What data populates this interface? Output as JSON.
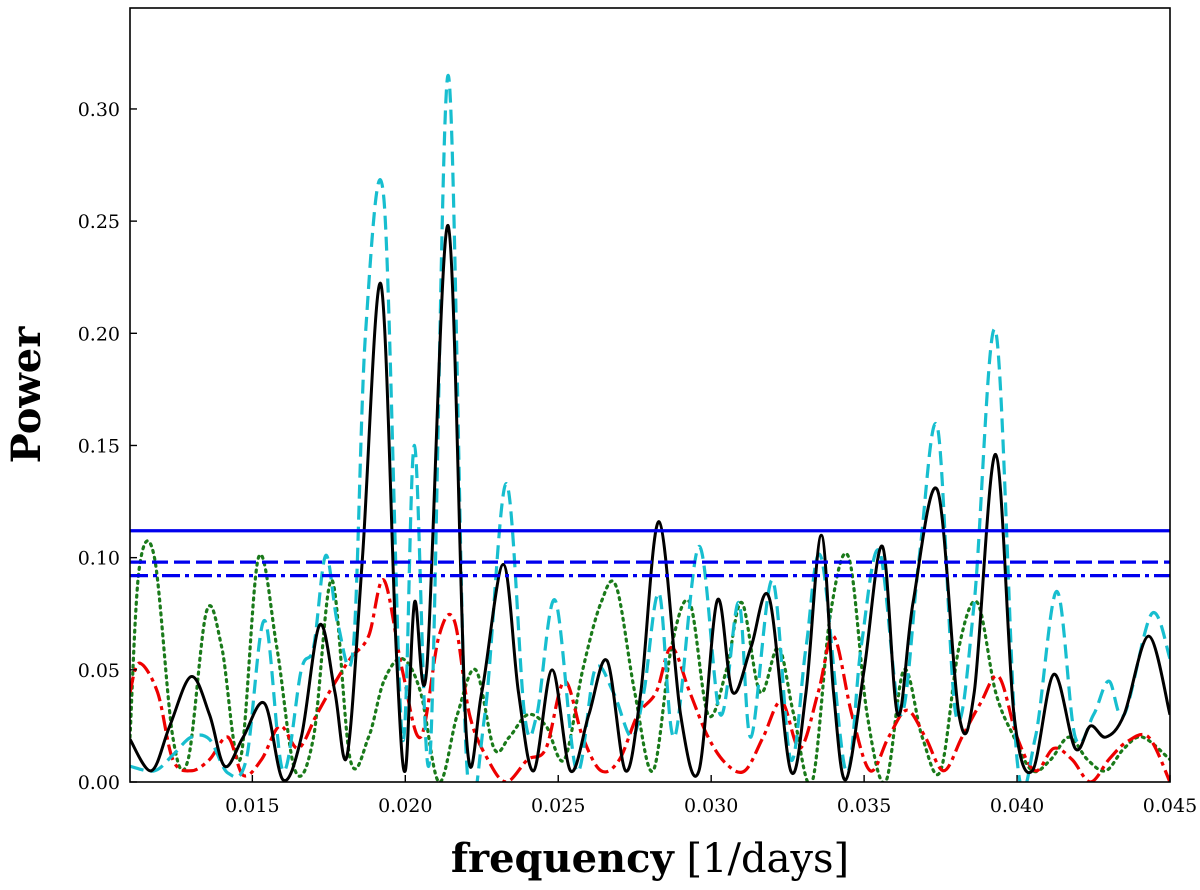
{
  "chart_data": {
    "type": "line",
    "title": "",
    "xlabel": {
      "bold": "frequency",
      "rest": " [1/days]"
    },
    "ylabel": "Power",
    "xlim": [
      0.011,
      0.045
    ],
    "ylim": [
      0.0,
      0.345
    ],
    "xticks": [
      {
        "value": 0.015,
        "label": "0.015"
      },
      {
        "value": 0.02,
        "label": "0.020"
      },
      {
        "value": 0.025,
        "label": "0.025"
      },
      {
        "value": 0.03,
        "label": "0.030"
      },
      {
        "value": 0.035,
        "label": "0.035"
      },
      {
        "value": 0.04,
        "label": "0.040"
      },
      {
        "value": 0.045,
        "label": "0.045"
      }
    ],
    "yticks": [
      {
        "value": 0.0,
        "label": "0.00"
      },
      {
        "value": 0.05,
        "label": "0.05"
      },
      {
        "value": 0.1,
        "label": "0.10"
      },
      {
        "value": 0.15,
        "label": "0.15"
      },
      {
        "value": 0.2,
        "label": "0.20"
      },
      {
        "value": 0.25,
        "label": "0.25"
      },
      {
        "value": 0.3,
        "label": "0.30"
      }
    ],
    "grid": false,
    "legend": "none",
    "hlines": [
      {
        "name": "threshold-solid",
        "y": 0.112,
        "color": "#0000ee",
        "style": "solid"
      },
      {
        "name": "threshold-dashed",
        "y": 0.098,
        "color": "#0000ee",
        "style": "dashed"
      },
      {
        "name": "threshold-dashdot",
        "y": 0.092,
        "color": "#0000ee",
        "style": "dashdot"
      }
    ],
    "series": [
      {
        "name": "cyan-dashed",
        "color": "#17becf",
        "style": "dashed",
        "x": [
          0.011,
          0.0118,
          0.0124,
          0.013,
          0.0136,
          0.0142,
          0.0148,
          0.0154,
          0.016,
          0.0166,
          0.017,
          0.0174,
          0.0178,
          0.0183,
          0.0187,
          0.0193,
          0.0199,
          0.0203,
          0.0208,
          0.0214,
          0.022,
          0.0226,
          0.0233,
          0.0239,
          0.0243,
          0.0249,
          0.0256,
          0.0262,
          0.0268,
          0.0274,
          0.0278,
          0.0283,
          0.0288,
          0.0296,
          0.0303,
          0.0309,
          0.0313,
          0.032,
          0.0326,
          0.0331,
          0.0336,
          0.0344,
          0.0349,
          0.0355,
          0.0362,
          0.0368,
          0.0374,
          0.038,
          0.0386,
          0.0393,
          0.04,
          0.0406,
          0.0413,
          0.0419,
          0.0425,
          0.043,
          0.0435,
          0.0444,
          0.045
        ],
        "y": [
          0.007,
          0.005,
          0.012,
          0.02,
          0.019,
          0.004,
          0.01,
          0.072,
          0.005,
          0.05,
          0.06,
          0.101,
          0.07,
          0.06,
          0.2,
          0.26,
          0.02,
          0.15,
          0.01,
          0.315,
          0.01,
          0.03,
          0.133,
          0.03,
          0.03,
          0.081,
          0.005,
          0.05,
          0.04,
          0.02,
          0.04,
          0.084,
          0.02,
          0.105,
          0.03,
          0.08,
          0.02,
          0.09,
          0.01,
          0.06,
          0.1,
          0.005,
          0.06,
          0.103,
          0.03,
          0.1,
          0.158,
          0.03,
          0.08,
          0.201,
          0.01,
          0.02,
          0.085,
          0.02,
          0.03,
          0.045,
          0.03,
          0.075,
          0.055
        ]
      },
      {
        "name": "black-solid",
        "color": "#000000",
        "style": "solid",
        "x": [
          0.011,
          0.0117,
          0.0123,
          0.013,
          0.0136,
          0.0141,
          0.0147,
          0.0154,
          0.016,
          0.0166,
          0.0172,
          0.0177,
          0.0181,
          0.0186,
          0.0192,
          0.0197,
          0.02,
          0.0203,
          0.0207,
          0.0214,
          0.022,
          0.0225,
          0.0232,
          0.0237,
          0.0242,
          0.0248,
          0.0254,
          0.026,
          0.0266,
          0.0272,
          0.0277,
          0.0283,
          0.029,
          0.0296,
          0.0302,
          0.0307,
          0.0313,
          0.0319,
          0.0326,
          0.0331,
          0.0336,
          0.034,
          0.0344,
          0.035,
          0.0356,
          0.0361,
          0.0366,
          0.0374,
          0.0381,
          0.0386,
          0.0393,
          0.0399,
          0.0405,
          0.0412,
          0.0419,
          0.0424,
          0.0429,
          0.0435,
          0.0443,
          0.045
        ],
        "y": [
          0.019,
          0.005,
          0.025,
          0.047,
          0.03,
          0.007,
          0.02,
          0.035,
          0.001,
          0.02,
          0.07,
          0.04,
          0.012,
          0.1,
          0.222,
          0.06,
          0.005,
          0.08,
          0.05,
          0.248,
          0.02,
          0.04,
          0.097,
          0.04,
          0.005,
          0.05,
          0.005,
          0.03,
          0.054,
          0.005,
          0.04,
          0.116,
          0.03,
          0.005,
          0.081,
          0.04,
          0.06,
          0.082,
          0.005,
          0.04,
          0.11,
          0.04,
          0.001,
          0.05,
          0.105,
          0.03,
          0.08,
          0.13,
          0.03,
          0.04,
          0.146,
          0.03,
          0.005,
          0.048,
          0.015,
          0.025,
          0.02,
          0.03,
          0.065,
          0.03
        ]
      },
      {
        "name": "red-dashdot",
        "color": "#ee0000",
        "style": "dashdot",
        "x": [
          0.011,
          0.0113,
          0.0119,
          0.0124,
          0.013,
          0.0136,
          0.0142,
          0.0147,
          0.0153,
          0.0159,
          0.0165,
          0.0171,
          0.0176,
          0.0182,
          0.0188,
          0.0193,
          0.0199,
          0.0205,
          0.0211,
          0.0216,
          0.0221,
          0.0227,
          0.0233,
          0.024,
          0.0246,
          0.0252,
          0.0258,
          0.0264,
          0.027,
          0.0276,
          0.0282,
          0.0287,
          0.0293,
          0.0299,
          0.0305,
          0.0311,
          0.0317,
          0.0323,
          0.0329,
          0.0335,
          0.034,
          0.0346,
          0.0352,
          0.0358,
          0.0364,
          0.037,
          0.0376,
          0.0382,
          0.0388,
          0.0394,
          0.04,
          0.0406,
          0.0412,
          0.0418,
          0.0424,
          0.043,
          0.0436,
          0.0443,
          0.045
        ],
        "y": [
          0.04,
          0.053,
          0.04,
          0.01,
          0.005,
          0.01,
          0.02,
          0.003,
          0.01,
          0.025,
          0.015,
          0.03,
          0.042,
          0.055,
          0.065,
          0.09,
          0.05,
          0.02,
          0.065,
          0.072,
          0.03,
          0.01,
          0.0,
          0.01,
          0.015,
          0.045,
          0.02,
          0.005,
          0.01,
          0.03,
          0.04,
          0.06,
          0.04,
          0.02,
          0.008,
          0.005,
          0.02,
          0.036,
          0.015,
          0.04,
          0.065,
          0.03,
          0.005,
          0.02,
          0.032,
          0.02,
          0.005,
          0.02,
          0.035,
          0.047,
          0.02,
          0.005,
          0.015,
          0.01,
          0.0,
          0.01,
          0.018,
          0.02,
          0.0
        ]
      },
      {
        "name": "green-dotted",
        "color": "#1a7a1a",
        "style": "dotted",
        "x": [
          0.011,
          0.0113,
          0.0118,
          0.0124,
          0.0129,
          0.0135,
          0.014,
          0.0146,
          0.0152,
          0.0158,
          0.0164,
          0.017,
          0.0176,
          0.0182,
          0.0188,
          0.0193,
          0.0199,
          0.0205,
          0.0211,
          0.0217,
          0.0223,
          0.0229,
          0.0234,
          0.024,
          0.0246,
          0.0252,
          0.0258,
          0.0264,
          0.0269,
          0.0275,
          0.0281,
          0.0287,
          0.0293,
          0.0299,
          0.0305,
          0.031,
          0.0316,
          0.0322,
          0.0327,
          0.0333,
          0.0339,
          0.0345,
          0.0351,
          0.0357,
          0.0363,
          0.0369,
          0.0375,
          0.0381,
          0.0387,
          0.0393,
          0.0399,
          0.0405,
          0.0411,
          0.0417,
          0.0423,
          0.0429,
          0.0435,
          0.0441,
          0.045
        ],
        "y": [
          0.02,
          0.095,
          0.1,
          0.02,
          0.01,
          0.076,
          0.06,
          0.01,
          0.1,
          0.06,
          0.005,
          0.02,
          0.09,
          0.01,
          0.02,
          0.045,
          0.055,
          0.04,
          0.0,
          0.03,
          0.05,
          0.015,
          0.02,
          0.03,
          0.025,
          0.01,
          0.05,
          0.08,
          0.087,
          0.04,
          0.005,
          0.06,
          0.08,
          0.03,
          0.05,
          0.08,
          0.04,
          0.06,
          0.03,
          0.0,
          0.075,
          0.1,
          0.03,
          0.0,
          0.05,
          0.02,
          0.005,
          0.06,
          0.08,
          0.04,
          0.02,
          0.005,
          0.01,
          0.02,
          0.01,
          0.005,
          0.015,
          0.02,
          0.01
        ]
      }
    ]
  }
}
